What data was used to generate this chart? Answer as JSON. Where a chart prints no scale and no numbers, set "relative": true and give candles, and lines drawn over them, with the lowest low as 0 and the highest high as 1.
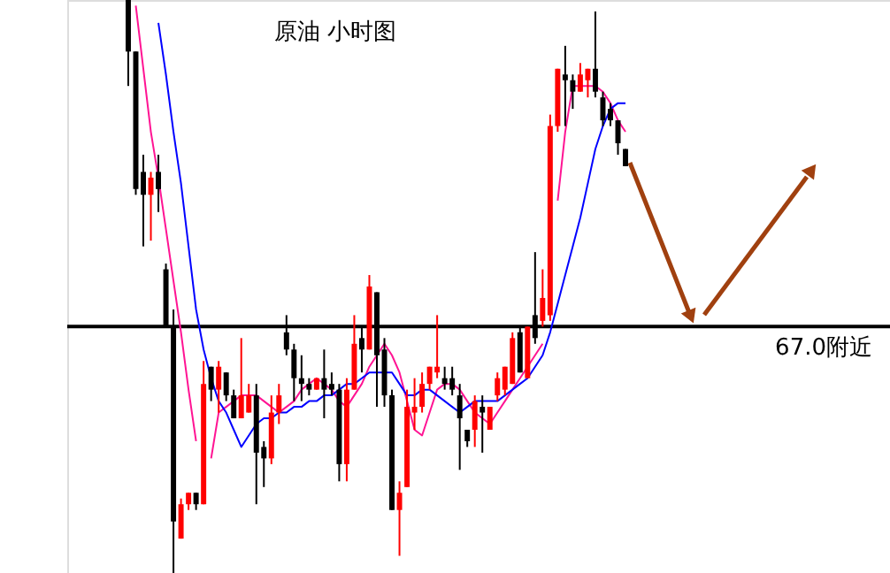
{
  "chart_data": {
    "type": "candlestick",
    "title": "原油  小时图",
    "relative": true,
    "categories": [
      null,
      null,
      null,
      null,
      null,
      null,
      null,
      null,
      null,
      null,
      null,
      null,
      null,
      null,
      null,
      null,
      null,
      null,
      null,
      null,
      null,
      null,
      null,
      null,
      null,
      null,
      null,
      null,
      null,
      null,
      null,
      null,
      null,
      null,
      null,
      null,
      null,
      null,
      null,
      null,
      null,
      null,
      null,
      null,
      null,
      null,
      null,
      null,
      null,
      null,
      null,
      null,
      null,
      null,
      null,
      null,
      null,
      null,
      null,
      null,
      null,
      null,
      null,
      null,
      null,
      null,
      null
    ],
    "ohlc": [
      [
        1.0,
        1.0,
        0.85,
        0.91
      ],
      [
        0.91,
        0.91,
        0.66,
        0.67
      ],
      [
        0.7,
        0.73,
        0.57,
        0.66
      ],
      [
        0.66,
        0.7,
        0.58,
        0.69
      ],
      [
        0.7,
        0.73,
        0.63,
        0.67
      ],
      [
        0.53,
        0.54,
        0.43,
        0.43
      ],
      [
        0.43,
        0.46,
        0.0,
        0.09
      ],
      [
        0.06,
        0.13,
        0.06,
        0.12
      ],
      [
        0.12,
        0.14,
        0.11,
        0.14
      ],
      [
        0.14,
        0.14,
        0.11,
        0.12
      ],
      [
        0.12,
        0.37,
        0.12,
        0.33
      ],
      [
        0.36,
        0.36,
        0.3,
        0.32
      ],
      [
        0.32,
        0.37,
        0.28,
        0.36
      ],
      [
        0.35,
        0.35,
        0.3,
        0.31
      ],
      [
        0.31,
        0.32,
        0.27,
        0.27
      ],
      [
        0.27,
        0.41,
        0.27,
        0.31
      ],
      [
        0.28,
        0.33,
        0.28,
        0.31
      ],
      [
        0.31,
        0.33,
        0.12,
        0.21
      ],
      [
        0.22,
        0.23,
        0.15,
        0.2
      ],
      [
        0.2,
        0.31,
        0.19,
        0.28
      ],
      [
        0.28,
        0.33,
        0.26,
        0.31
      ],
      [
        0.42,
        0.45,
        0.38,
        0.39
      ],
      [
        0.39,
        0.4,
        0.3,
        0.34
      ],
      [
        0.34,
        0.38,
        0.3,
        0.33
      ],
      [
        0.33,
        0.34,
        0.31,
        0.32
      ],
      [
        0.32,
        0.34,
        0.32,
        0.34
      ],
      [
        0.34,
        0.39,
        0.27,
        0.32
      ],
      [
        0.33,
        0.35,
        0.31,
        0.32
      ],
      [
        0.32,
        0.33,
        0.16,
        0.19
      ],
      [
        0.19,
        0.34,
        0.16,
        0.32
      ],
      [
        0.32,
        0.45,
        0.32,
        0.4
      ],
      [
        0.41,
        0.43,
        0.35,
        0.39
      ],
      [
        0.39,
        0.52,
        0.39,
        0.5
      ],
      [
        0.49,
        0.49,
        0.29,
        0.38
      ],
      [
        0.39,
        0.41,
        0.29,
        0.31
      ],
      [
        0.31,
        0.32,
        0.11,
        0.11
      ],
      [
        0.11,
        0.16,
        0.03,
        0.14
      ],
      [
        0.15,
        0.32,
        0.15,
        0.29
      ],
      [
        0.28,
        0.34,
        0.25,
        0.29
      ],
      [
        0.29,
        0.35,
        0.28,
        0.33
      ],
      [
        0.33,
        0.36,
        0.32,
        0.36
      ],
      [
        0.35,
        0.45,
        0.34,
        0.36
      ],
      [
        0.34,
        0.36,
        0.32,
        0.33
      ],
      [
        0.34,
        0.36,
        0.31,
        0.32
      ],
      [
        0.31,
        0.33,
        0.18,
        0.27
      ],
      [
        0.25,
        0.25,
        0.22,
        0.23
      ],
      [
        0.25,
        0.31,
        0.22,
        0.3
      ],
      [
        0.29,
        0.31,
        0.21,
        0.28
      ],
      [
        0.25,
        0.29,
        0.25,
        0.29
      ],
      [
        0.31,
        0.35,
        0.3,
        0.34
      ],
      [
        0.32,
        0.36,
        0.31,
        0.36
      ],
      [
        0.33,
        0.42,
        0.33,
        0.41
      ],
      [
        0.42,
        0.43,
        0.35,
        0.35
      ],
      [
        0.34,
        0.43,
        0.34,
        0.43
      ],
      [
        0.45,
        0.56,
        0.4,
        0.41
      ],
      [
        0.44,
        0.53,
        0.43,
        0.48
      ],
      [
        0.45,
        0.8,
        0.44,
        0.78
      ],
      [
        0.78,
        0.88,
        0.77,
        0.88
      ],
      [
        0.87,
        0.92,
        0.78,
        0.86
      ],
      [
        0.86,
        0.87,
        0.81,
        0.84
      ],
      [
        0.84,
        0.89,
        0.84,
        0.87
      ],
      [
        0.86,
        0.88,
        0.83,
        0.88
      ],
      [
        0.88,
        0.98,
        0.83,
        0.84
      ],
      [
        0.83,
        0.84,
        0.78,
        0.79
      ],
      [
        0.81,
        0.82,
        0.78,
        0.79
      ],
      [
        0.79,
        0.79,
        0.73,
        0.75
      ],
      [
        0.74,
        0.74,
        0.71,
        0.71
      ]
    ],
    "series": [
      {
        "type": "line",
        "color": "#ff1493",
        "values": [
          null,
          0.99,
          0.88,
          0.77,
          0.69,
          0.6,
          0.51,
          0.42,
          0.32,
          0.23,
          null,
          0.2,
          0.28,
          0.29,
          0.3,
          0.31,
          0.31,
          0.31,
          0.3,
          0.29,
          0.28,
          0.29,
          0.3,
          0.32,
          0.33,
          0.34,
          0.33,
          0.32,
          0.3,
          0.29,
          0.31,
          0.33,
          0.36,
          0.38,
          0.4,
          0.38,
          0.35,
          0.3,
          0.25,
          0.24,
          0.28,
          0.32,
          0.33,
          0.33,
          0.32,
          0.3,
          0.28,
          0.27,
          0.26,
          0.28,
          0.3,
          0.32,
          0.34,
          0.36,
          0.38,
          0.4,
          null,
          0.65,
          0.77,
          0.85,
          0.85,
          0.85,
          0.85,
          0.84,
          0.82,
          0.79,
          0.77
        ]
      },
      {
        "type": "line",
        "color": "#0000ff",
        "values": [
          null,
          null,
          null,
          null,
          0.96,
          0.87,
          0.77,
          0.68,
          0.57,
          0.46,
          0.39,
          0.34,
          0.3,
          0.28,
          0.25,
          0.22,
          0.24,
          0.26,
          0.27,
          0.27,
          0.28,
          0.28,
          0.29,
          0.29,
          0.3,
          0.3,
          0.31,
          0.31,
          0.32,
          0.33,
          0.33,
          0.34,
          0.35,
          0.35,
          0.35,
          0.35,
          0.33,
          0.31,
          0.31,
          0.32,
          0.32,
          0.31,
          0.3,
          0.29,
          0.28,
          0.29,
          0.3,
          0.3,
          0.3,
          0.3,
          0.31,
          0.32,
          0.33,
          0.34,
          0.36,
          0.38,
          0.42,
          0.47,
          0.52,
          0.57,
          0.62,
          0.68,
          0.74,
          0.78,
          0.81,
          0.82,
          0.82
        ]
      }
    ],
    "ref_lines": [
      {
        "axis": "y",
        "value": 0.43,
        "label": "67.0附近",
        "color": "#000000"
      }
    ]
  }
}
